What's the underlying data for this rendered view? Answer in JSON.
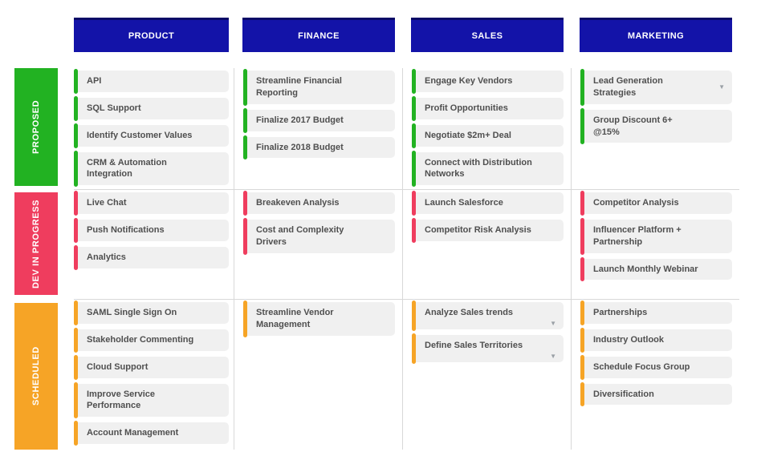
{
  "board": {
    "header_color": "#1313a8",
    "divider_color": "#d8d8d8",
    "card_bg": "#f0f0f0",
    "icons": {
      "chevron_down": "▼"
    },
    "columns": [
      {
        "label": "PRODUCT"
      },
      {
        "label": "FINANCE"
      },
      {
        "label": "SALES"
      },
      {
        "label": "MARKETING"
      }
    ],
    "rows": [
      {
        "label": "PROPOSED",
        "color": "#22b222",
        "cells": [
          {
            "cards": [
              {
                "text": "API"
              },
              {
                "text": "SQL Support"
              },
              {
                "text": "Identify Customer Values"
              },
              {
                "text": "CRM & Automation\nIntegration"
              }
            ]
          },
          {
            "cards": [
              {
                "text": "Streamline Financial\nReporting"
              },
              {
                "text": "Finalize 2017 Budget"
              },
              {
                "text": "Finalize 2018 Budget"
              }
            ]
          },
          {
            "cards": [
              {
                "text": "Engage Key Vendors"
              },
              {
                "text": "Profit Opportunities"
              },
              {
                "text": "Negotiate $2m+ Deal"
              },
              {
                "text": "Connect with Distribution\nNetworks"
              }
            ]
          },
          {
            "cards": [
              {
                "text": "Lead Generation\nStrategies",
                "dropdown": "middle"
              },
              {
                "text": "Group Discount 6+\n@15%"
              }
            ]
          }
        ]
      },
      {
        "label": "DEV IN PROGRESS",
        "color": "#ef3d5e",
        "cells": [
          {
            "cards": [
              {
                "text": "Live Chat"
              },
              {
                "text": "Push Notifications"
              },
              {
                "text": "Analytics"
              }
            ]
          },
          {
            "cards": [
              {
                "text": "Breakeven Analysis"
              },
              {
                "text": "Cost and Complexity\nDrivers"
              }
            ]
          },
          {
            "cards": [
              {
                "text": "Launch Salesforce"
              },
              {
                "text": "Competitor Risk Analysis"
              }
            ]
          },
          {
            "cards": [
              {
                "text": "Competitor Analysis"
              },
              {
                "text": "Influencer Platform +\nPartnership"
              },
              {
                "text": "Launch Monthly Webinar"
              }
            ]
          }
        ]
      },
      {
        "label": "SCHEDULED",
        "color": "#f6a426",
        "cells": [
          {
            "cards": [
              {
                "text": "SAML Single Sign On"
              },
              {
                "text": "Stakeholder Commenting"
              },
              {
                "text": "Cloud Support"
              },
              {
                "text": "Improve Service\nPerformance"
              },
              {
                "text": "Account Management"
              }
            ]
          },
          {
            "cards": [
              {
                "text": "Streamline Vendor\nManagement"
              }
            ]
          },
          {
            "cards": [
              {
                "text": "Analyze Sales trends",
                "dropdown": "bottom"
              },
              {
                "text": "Define Sales Territories",
                "dropdown": "bottom"
              }
            ]
          },
          {
            "cards": [
              {
                "text": "Partnerships"
              },
              {
                "text": "Industry Outlook"
              },
              {
                "text": "Schedule Focus Group"
              },
              {
                "text": "Diversification"
              }
            ]
          }
        ]
      }
    ]
  }
}
